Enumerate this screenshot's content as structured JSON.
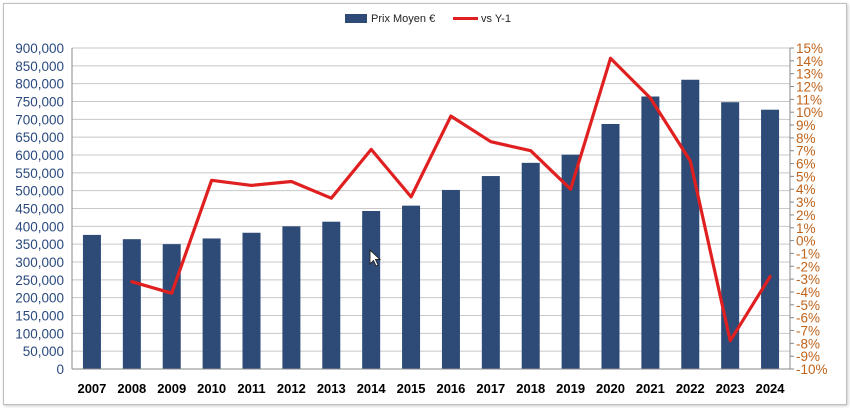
{
  "chart_data": {
    "type": "bar",
    "title": "",
    "xlabel": "",
    "ylabel": "",
    "categories": [
      "2007",
      "2008",
      "2009",
      "2010",
      "2011",
      "2012",
      "2013",
      "2014",
      "2015",
      "2016",
      "2017",
      "2018",
      "2019",
      "2020",
      "2021",
      "2022",
      "2023",
      "2024"
    ],
    "series": [
      {
        "name": "Prix Moyen €",
        "type": "bar",
        "axis": "left",
        "color": "#2e4a77",
        "values": [
          376000,
          364000,
          350000,
          366000,
          382000,
          400000,
          413000,
          443000,
          458000,
          502000,
          541000,
          578000,
          601000,
          687000,
          764000,
          811000,
          748000,
          727000
        ]
      },
      {
        "name": "vs Y-1",
        "type": "line",
        "axis": "right",
        "color": "#e02020",
        "values": [
          null,
          -3.2,
          -4.1,
          4.7,
          4.3,
          4.6,
          3.3,
          7.1,
          3.4,
          9.7,
          7.7,
          7.0,
          4.0,
          14.2,
          11.1,
          6.2,
          -7.8,
          -2.8
        ]
      }
    ],
    "ylim_left": [
      0,
      900000
    ],
    "ylim_right": [
      -10,
      15
    ],
    "left_ticks": [
      "0",
      "50,000",
      "100,000",
      "150,000",
      "200,000",
      "250,000",
      "300,000",
      "350,000",
      "400,000",
      "450,000",
      "500,000",
      "550,000",
      "600,000",
      "650,000",
      "700,000",
      "750,000",
      "800,000",
      "850,000",
      "900,000"
    ],
    "right_ticks": [
      "-10%",
      "-9%",
      "-8%",
      "-7%",
      "-6%",
      "-5%",
      "-4%",
      "-3%",
      "-2%",
      "-1%",
      "0%",
      "1%",
      "2%",
      "3%",
      "4%",
      "5%",
      "6%",
      "7%",
      "8%",
      "9%",
      "10%",
      "11%",
      "12%",
      "13%",
      "14%",
      "15%"
    ],
    "grid": true,
    "legend_position": "top-center"
  }
}
